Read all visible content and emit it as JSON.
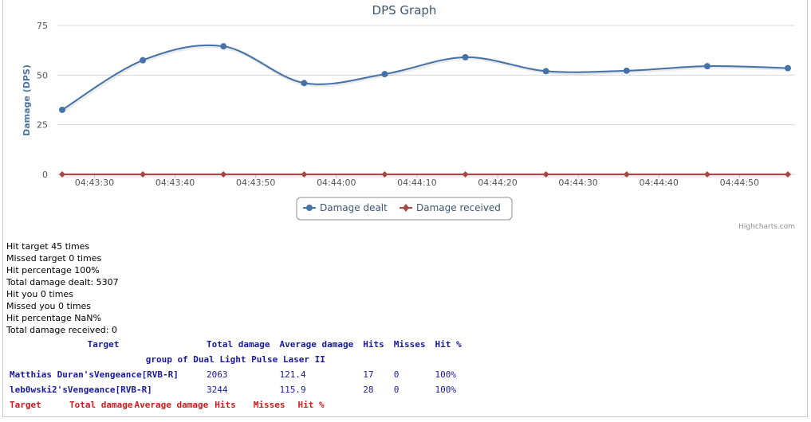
{
  "chart_data": {
    "type": "line",
    "title": "DPS Graph",
    "ylabel": "Damage (DPS)",
    "xlabel": "",
    "ylim": [
      0,
      75
    ],
    "y_ticks": [
      "0",
      "25",
      "50",
      "75"
    ],
    "x_ticks": [
      "04:43:30",
      "04:43:40",
      "04:43:50",
      "04:44:00",
      "04:44:10",
      "04:44:20",
      "04:44:30",
      "04:44:40",
      "04:44:50"
    ],
    "x": [
      "04:43:26",
      "04:43:36",
      "04:43:46",
      "04:43:56",
      "04:44:06",
      "04:44:16",
      "04:44:26",
      "04:44:36",
      "04:44:46",
      "04:44:56"
    ],
    "series": [
      {
        "name": "Damage dealt",
        "color": "#4572a7",
        "values": [
          32.5,
          57.5,
          64.5,
          46,
          50.5,
          59,
          52,
          52.2,
          54.5,
          53.5
        ]
      },
      {
        "name": "Damage received",
        "color": "#aa4643",
        "values": [
          0,
          0,
          0,
          0,
          0,
          0,
          0,
          0,
          0,
          0
        ]
      }
    ],
    "grid": true,
    "legend_position": "bottom-center",
    "credits": "Highcharts.com"
  },
  "stats": [
    "Hit target 45 times",
    "Missed target 0 times",
    "Hit percentage 100%",
    "Total damage dealt: 5307",
    "Hit you 0 times",
    "Missed you 0 times",
    "Hit percentage NaN%",
    "Total damage received: 0"
  ],
  "outgoing_table": {
    "headers": [
      "Target",
      "Total damage",
      "Average damage",
      "Hits",
      "Misses",
      "Hit %"
    ],
    "group": "group of Dual Light Pulse Laser II",
    "rows": [
      {
        "target": "Matthias Duran'sVengeance[RVB-R]",
        "total": "2063",
        "average": "121.4",
        "hits": "17",
        "misses": "0",
        "hit_pct": "100%"
      },
      {
        "target": "leb0wski2'sVengeance[RVB-R]",
        "total": "3244",
        "average": "115.9",
        "hits": "28",
        "misses": "0",
        "hit_pct": "100%"
      }
    ]
  },
  "incoming_table": {
    "headers": [
      "Target",
      "Total damage",
      "Average damage",
      "Hits",
      "Misses",
      "Hit %"
    ]
  }
}
